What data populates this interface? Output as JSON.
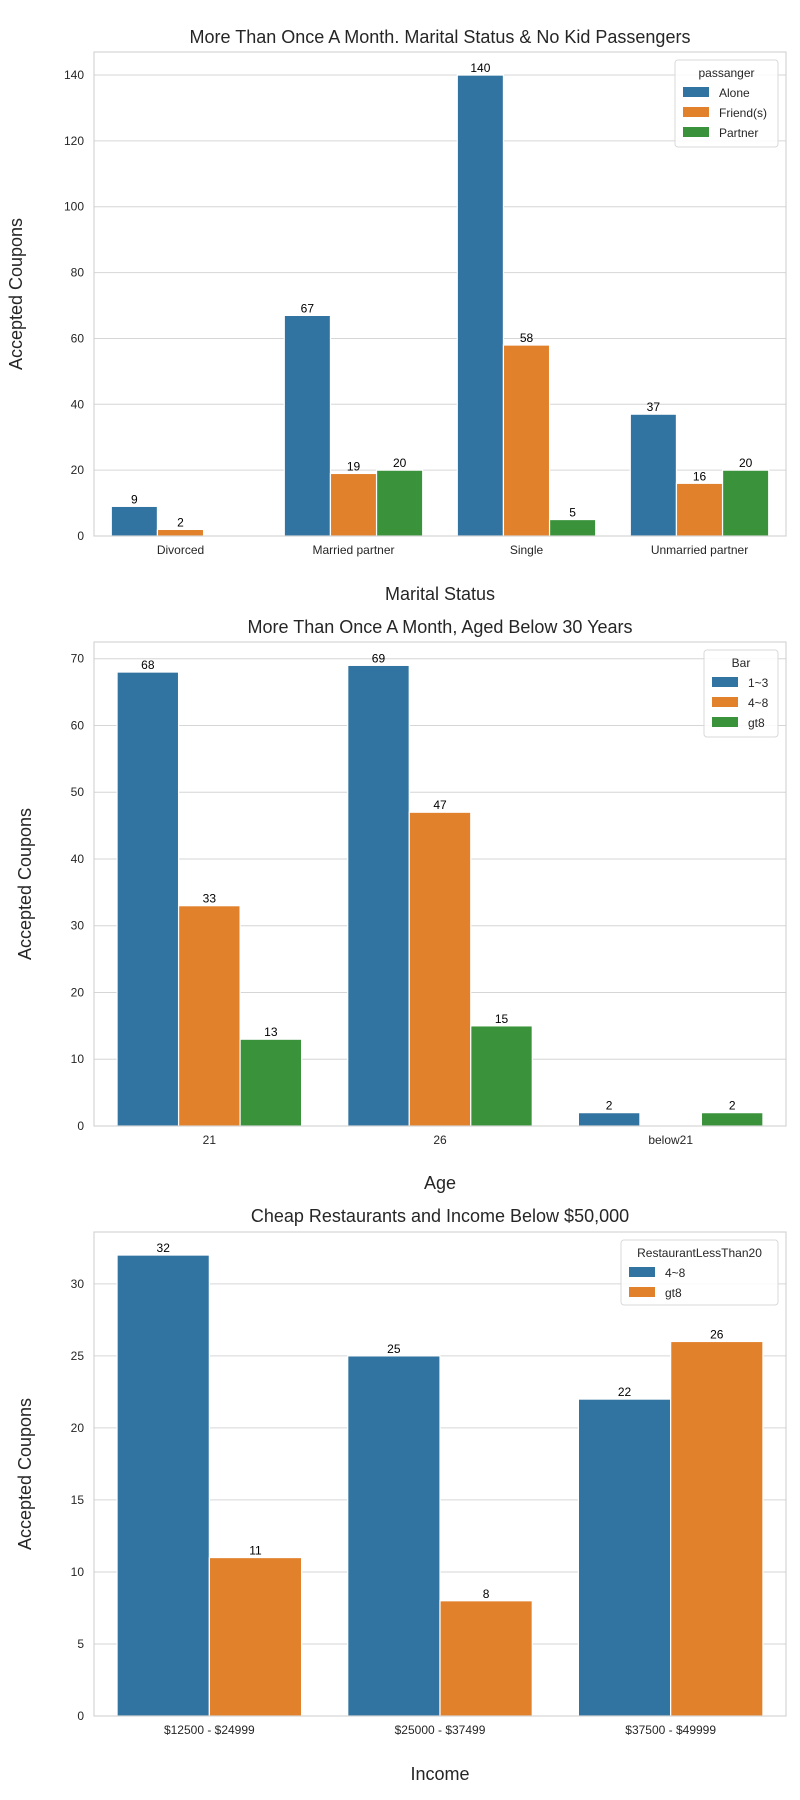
{
  "chart_data": [
    {
      "type": "bar",
      "title": "More Than Once A Month. Marital Status & No Kid Passengers",
      "xlabel": "Marital Status",
      "ylabel": "Accepted Coupons",
      "categories": [
        "Divorced",
        "Married partner",
        "Single",
        "Unmarried partner"
      ],
      "yticks": [
        0,
        20,
        40,
        60,
        80,
        100,
        120,
        140
      ],
      "ylim": [
        0,
        147
      ],
      "legend_title": "passanger",
      "legend_position": "top-right",
      "grid": true,
      "series": [
        {
          "name": "Alone",
          "color": "#3274a1",
          "values": [
            9,
            67,
            140,
            37
          ]
        },
        {
          "name": "Friend(s)",
          "color": "#e1812c",
          "values": [
            2,
            19,
            58,
            16
          ]
        },
        {
          "name": "Partner",
          "color": "#3a923a",
          "values": [
            null,
            20,
            5,
            20
          ]
        }
      ]
    },
    {
      "type": "bar",
      "title": "More Than Once A Month, Aged Below 30 Years",
      "xlabel": "Age",
      "ylabel": "Accepted Coupons",
      "categories": [
        "21",
        "26",
        "below21"
      ],
      "yticks": [
        0,
        10,
        20,
        30,
        40,
        50,
        60,
        70
      ],
      "ylim": [
        0,
        72.5
      ],
      "legend_title": "Bar",
      "legend_position": "top-right",
      "grid": true,
      "series": [
        {
          "name": "1~3",
          "color": "#3274a1",
          "values": [
            68,
            69,
            2
          ]
        },
        {
          "name": "4~8",
          "color": "#e1812c",
          "values": [
            33,
            47,
            null
          ]
        },
        {
          "name": "gt8",
          "color": "#3a923a",
          "values": [
            13,
            15,
            2
          ]
        }
      ]
    },
    {
      "type": "bar",
      "title": "Cheap Restaurants and Income Below $50,000",
      "xlabel": "Income",
      "ylabel": "Accepted Coupons",
      "categories": [
        "$12500 - $24999",
        "$25000 - $37499",
        "$37500 - $49999"
      ],
      "yticks": [
        0,
        5,
        10,
        15,
        20,
        25,
        30
      ],
      "ylim": [
        0,
        33.6
      ],
      "legend_title": "RestaurantLessThan20",
      "legend_position": "top-right",
      "grid": true,
      "series": [
        {
          "name": "4~8",
          "color": "#3274a1",
          "values": [
            32,
            25,
            22
          ]
        },
        {
          "name": "gt8",
          "color": "#e1812c",
          "values": [
            11,
            8,
            26
          ]
        }
      ]
    }
  ]
}
